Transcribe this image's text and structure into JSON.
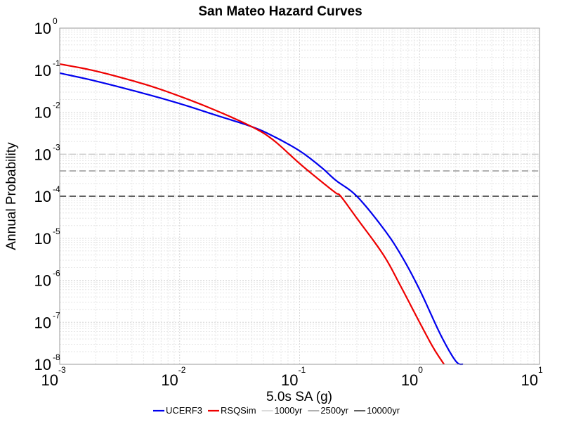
{
  "chart_data": {
    "type": "line",
    "title": "San Mateo Hazard Curves",
    "xlabel": "5.0s SA (g)",
    "ylabel": "Annual Probability",
    "x_scale": "log",
    "y_scale": "log",
    "xlim": [
      0.001,
      10
    ],
    "ylim": [
      1e-08,
      1
    ],
    "grid": true,
    "legend_position": "bottom",
    "x_ticks": [
      {
        "base": "10",
        "exp": "-3"
      },
      {
        "base": "10",
        "exp": "-2"
      },
      {
        "base": "10",
        "exp": "-1"
      },
      {
        "base": "10",
        "exp": "0"
      },
      {
        "base": "10",
        "exp": "1"
      }
    ],
    "y_ticks": [
      {
        "base": "10",
        "exp": "0"
      },
      {
        "base": "10",
        "exp": "-1"
      },
      {
        "base": "10",
        "exp": "-2"
      },
      {
        "base": "10",
        "exp": "-3"
      },
      {
        "base": "10",
        "exp": "-4"
      },
      {
        "base": "10",
        "exp": "-5"
      },
      {
        "base": "10",
        "exp": "-6"
      },
      {
        "base": "10",
        "exp": "-7"
      },
      {
        "base": "10",
        "exp": "-8"
      }
    ],
    "series": [
      {
        "name": "UCERF3",
        "color": "#0000ee",
        "x": [
          0.001,
          0.002,
          0.005,
          0.01,
          0.02,
          0.04,
          0.06,
          0.1,
          0.15,
          0.2,
          0.3,
          0.5,
          0.7,
          1.0,
          1.5,
          2.0,
          2.3
        ],
        "y": [
          0.085,
          0.055,
          0.028,
          0.016,
          0.0085,
          0.0045,
          0.0027,
          0.0012,
          0.0005,
          0.00024,
          0.0001,
          1.7e-05,
          4e-06,
          6e-07,
          5e-08,
          1.2e-08,
          1e-08
        ]
      },
      {
        "name": "RSQSim",
        "color": "#ee0000",
        "x": [
          0.001,
          0.002,
          0.005,
          0.01,
          0.02,
          0.04,
          0.06,
          0.1,
          0.15,
          0.2,
          0.22,
          0.3,
          0.5,
          0.7,
          1.0,
          1.3,
          1.6
        ],
        "y": [
          0.14,
          0.095,
          0.047,
          0.024,
          0.011,
          0.0045,
          0.0022,
          0.0006,
          0.00023,
          0.00012,
          0.0001,
          3e-05,
          4e-06,
          7e-07,
          1e-07,
          2.5e-08,
          1e-08
        ]
      }
    ],
    "reference_lines": [
      {
        "name": "1000yr",
        "y": 0.001,
        "color": "#c8c8c8"
      },
      {
        "name": "2500yr",
        "y": 0.0004,
        "color": "#808080"
      },
      {
        "name": "10000yr",
        "y": 0.0001,
        "color": "#000000"
      }
    ]
  }
}
